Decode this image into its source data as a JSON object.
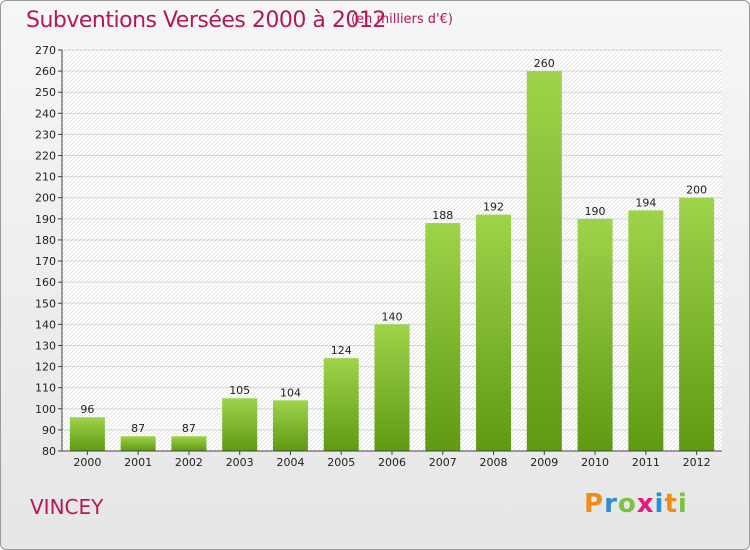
{
  "title": "Subventions Versées 2000 à 2012",
  "subtitle": "(en milliers d'€)",
  "commune": "VINCEY",
  "logo": {
    "letters": [
      "P",
      "r",
      "o",
      "x",
      "i",
      "t",
      "i"
    ],
    "colors": [
      "#f28c18",
      "#2a8fd0",
      "#7cc242",
      "#e6197e",
      "#2a8fd0",
      "#f28c18",
      "#7cc242"
    ]
  },
  "colors": {
    "bar_light": "#9fd34a",
    "bar_dark": "#5e9a12",
    "title": "#b0195a"
  },
  "chart_data": {
    "type": "bar",
    "categories": [
      "2000",
      "2001",
      "2002",
      "2003",
      "2004",
      "2005",
      "2006",
      "2007",
      "2008",
      "2009",
      "2010",
      "2011",
      "2012"
    ],
    "values": [
      96,
      87,
      87,
      105,
      104,
      124,
      140,
      188,
      192,
      260,
      190,
      194,
      200
    ],
    "ylim": [
      80,
      270
    ],
    "yticks": [
      80,
      90,
      100,
      110,
      120,
      130,
      140,
      150,
      160,
      170,
      180,
      190,
      200,
      210,
      220,
      230,
      240,
      250,
      260,
      270
    ],
    "grid": true,
    "xlabel": "",
    "ylabel": ""
  }
}
